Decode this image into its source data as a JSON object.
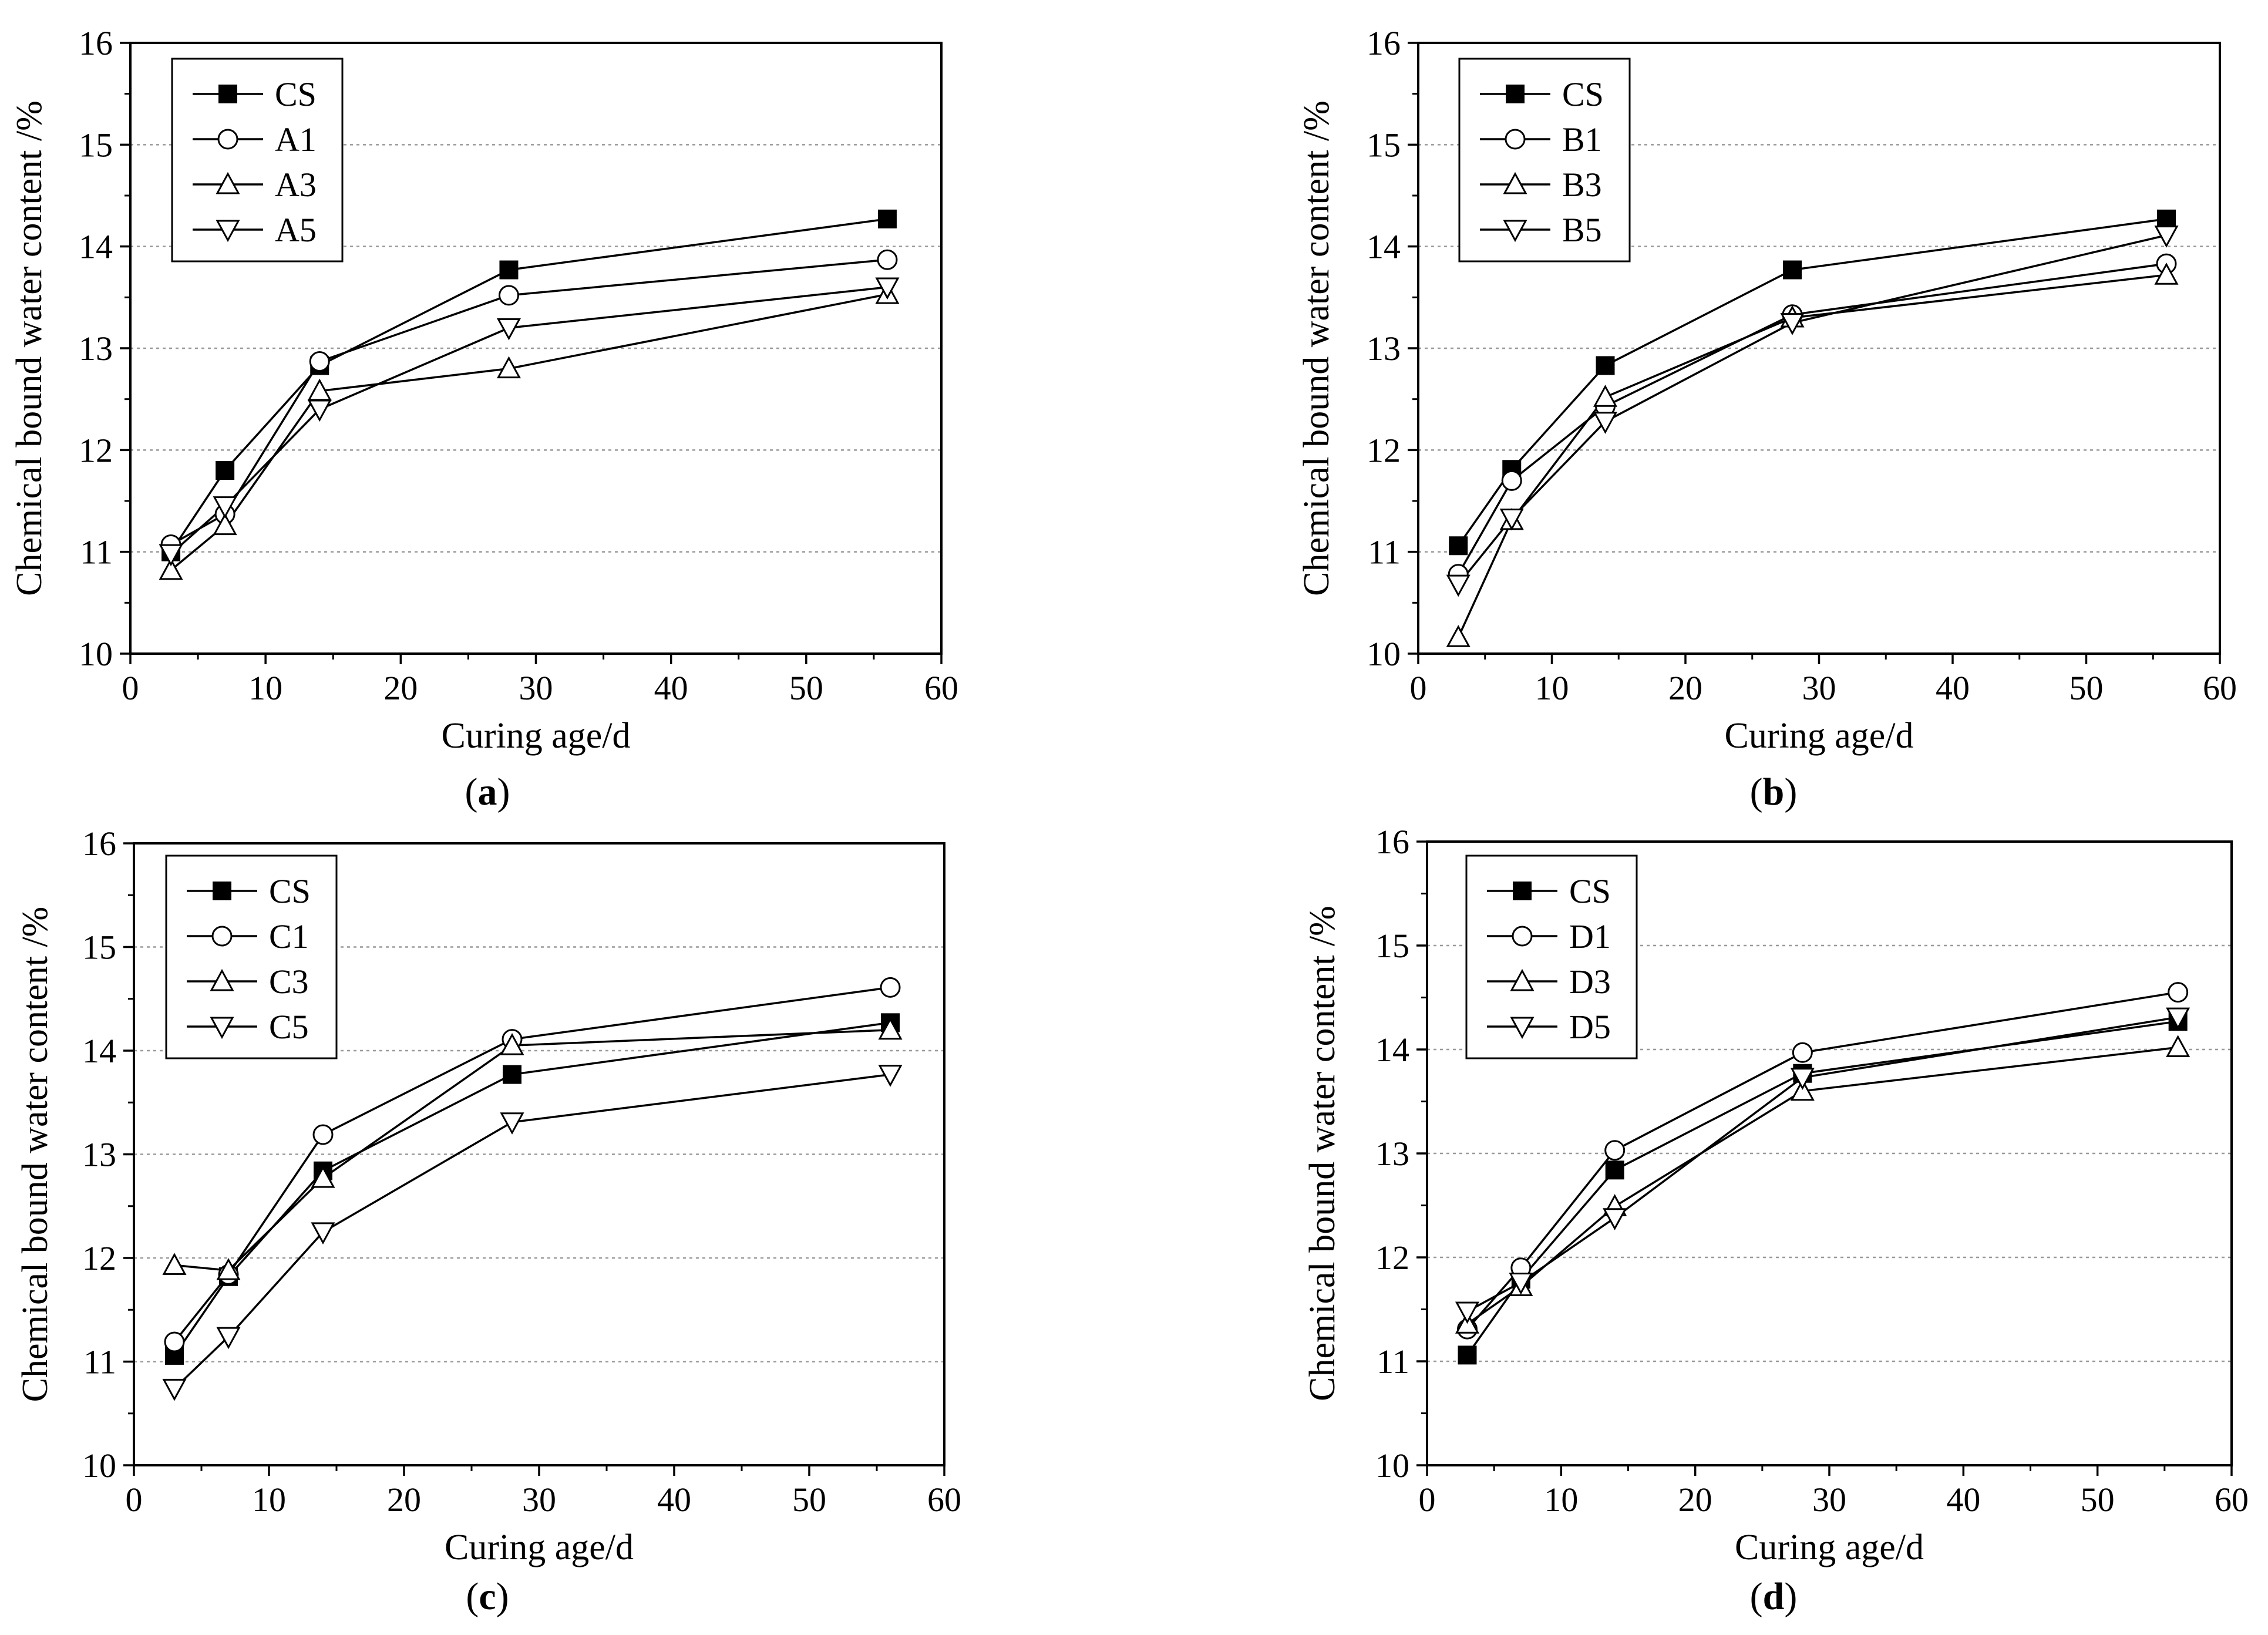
{
  "chart_data": [
    {
      "panel": "a",
      "caption": {
        "open": "(",
        "letter": "a",
        "close": ")"
      },
      "type": "line",
      "xlabel": "Curing age/d",
      "ylabel": "Chemical bound water content /%",
      "xlim": [
        0,
        60
      ],
      "ylim": [
        10,
        16
      ],
      "xticks": [
        0,
        10,
        20,
        30,
        40,
        50,
        60
      ],
      "yticks": [
        10,
        11,
        12,
        13,
        14,
        15,
        16
      ],
      "grid": "horizontal-dotted",
      "legend_position": "top-left",
      "x": [
        3,
        7,
        14,
        28,
        56
      ],
      "series": [
        {
          "name": "CS",
          "marker": "square-filled",
          "values": [
            11.0,
            11.8,
            12.83,
            13.77,
            14.27
          ]
        },
        {
          "name": "A1",
          "marker": "circle-open",
          "values": [
            11.07,
            11.37,
            12.87,
            13.52,
            13.87
          ]
        },
        {
          "name": "A3",
          "marker": "triangle-up-open",
          "values": [
            10.82,
            11.26,
            12.58,
            12.8,
            13.53
          ]
        },
        {
          "name": "A5",
          "marker": "triangle-down-open",
          "values": [
            10.98,
            11.45,
            12.4,
            13.2,
            13.6
          ]
        }
      ]
    },
    {
      "panel": "b",
      "caption": {
        "open": "(",
        "letter": "b",
        "close": ")"
      },
      "type": "line",
      "xlabel": "Curing age/d",
      "ylabel": "Chemical bound water content /%",
      "xlim": [
        0,
        60
      ],
      "ylim": [
        10,
        16
      ],
      "xticks": [
        0,
        10,
        20,
        30,
        40,
        50,
        60
      ],
      "yticks": [
        10,
        11,
        12,
        13,
        14,
        15,
        16
      ],
      "grid": "horizontal-dotted",
      "legend_position": "top-left",
      "x": [
        3,
        7,
        14,
        28,
        56
      ],
      "series": [
        {
          "name": "CS",
          "marker": "square-filled",
          "values": [
            11.06,
            11.81,
            12.83,
            13.77,
            14.27
          ]
        },
        {
          "name": "B1",
          "marker": "circle-open",
          "values": [
            10.78,
            11.7,
            12.43,
            13.33,
            13.83
          ]
        },
        {
          "name": "B3",
          "marker": "triangle-up-open",
          "values": [
            10.16,
            11.31,
            12.52,
            13.3,
            13.72
          ]
        },
        {
          "name": "B5",
          "marker": "triangle-down-open",
          "values": [
            10.68,
            11.33,
            12.28,
            13.25,
            14.11
          ]
        }
      ]
    },
    {
      "panel": "c",
      "caption": {
        "open": "(",
        "letter": "c",
        "close": ")"
      },
      "type": "line",
      "xlabel": "Curing age/d",
      "ylabel": "Chemical bound water content /%",
      "xlim": [
        0,
        60
      ],
      "ylim": [
        10,
        16
      ],
      "xticks": [
        0,
        10,
        20,
        30,
        40,
        50,
        60
      ],
      "yticks": [
        10,
        11,
        12,
        13,
        14,
        15,
        16
      ],
      "grid": "horizontal-dotted",
      "legend_position": "top-left",
      "x": [
        3,
        7,
        14,
        28,
        56
      ],
      "series": [
        {
          "name": "CS",
          "marker": "square-filled",
          "values": [
            11.06,
            11.82,
            12.84,
            13.77,
            14.27
          ]
        },
        {
          "name": "C1",
          "marker": "circle-open",
          "values": [
            11.19,
            11.84,
            13.19,
            14.11,
            14.61
          ]
        },
        {
          "name": "C3",
          "marker": "triangle-up-open",
          "values": [
            11.93,
            11.88,
            12.77,
            14.05,
            14.2
          ]
        },
        {
          "name": "C5",
          "marker": "triangle-down-open",
          "values": [
            10.74,
            11.24,
            12.25,
            13.31,
            13.77
          ]
        }
      ]
    },
    {
      "panel": "d",
      "caption": {
        "open": "(",
        "letter": "d",
        "close": ")"
      },
      "type": "line",
      "xlabel": "Curing age/d",
      "ylabel": "Chemical bound water content /%",
      "xlim": [
        0,
        60
      ],
      "ylim": [
        10,
        16
      ],
      "xticks": [
        0,
        10,
        20,
        30,
        40,
        50,
        60
      ],
      "yticks": [
        10,
        11,
        12,
        13,
        14,
        15,
        16
      ],
      "grid": "horizontal-dotted",
      "legend_position": "top-left",
      "x": [
        3,
        7,
        14,
        28,
        56
      ],
      "series": [
        {
          "name": "CS",
          "marker": "square-filled",
          "values": [
            11.06,
            11.79,
            12.84,
            13.77,
            14.27
          ]
        },
        {
          "name": "D1",
          "marker": "circle-open",
          "values": [
            11.31,
            11.9,
            13.03,
            13.97,
            14.55
          ]
        },
        {
          "name": "D3",
          "marker": "triangle-up-open",
          "values": [
            11.36,
            11.72,
            12.49,
            13.6,
            14.02
          ]
        },
        {
          "name": "D5",
          "marker": "triangle-down-open",
          "values": [
            11.48,
            11.76,
            12.38,
            13.73,
            14.31
          ]
        }
      ]
    }
  ]
}
